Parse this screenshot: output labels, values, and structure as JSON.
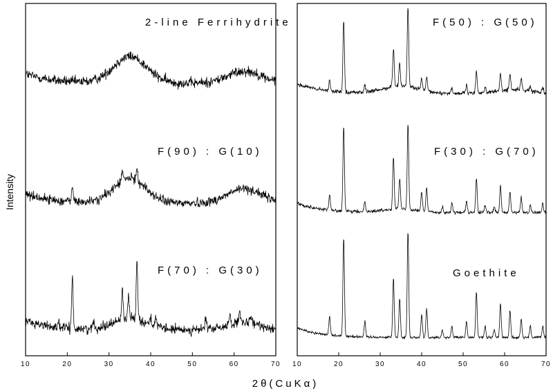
{
  "chart_data": [
    {
      "type": "line",
      "panel": "left",
      "xlabel": "2θ(CuKα)",
      "ylabel": "Intensity",
      "xlim": [
        10,
        70
      ],
      "xticks": [
        "10",
        "20",
        "30",
        "40",
        "50",
        "60",
        "70"
      ],
      "y_ticks_shown": false,
      "series": [
        {
          "name": "2-line Ferrihydrite",
          "baseline": 0.72,
          "broad_peaks": [
            [
              35.0,
              0.7,
              4.0
            ],
            [
              62.5,
              0.32,
              4.0
            ]
          ],
          "sharp_peaks": [],
          "noise": 0.13
        },
        {
          "name": "F(90) : G(10)",
          "baseline": 0.6,
          "broad_peaks": [
            [
              35.0,
              0.65,
              3.8
            ],
            [
              62.5,
              0.38,
              4.0
            ]
          ],
          "sharp_peaks": [
            [
              21.2,
              0.45
            ],
            [
              33.2,
              0.25
            ],
            [
              36.7,
              0.35
            ]
          ],
          "noise": 0.12
        },
        {
          "name": "F(70) : G(30)",
          "baseline": 0.5,
          "broad_peaks": [
            [
              35.0,
              0.3,
              4.0
            ],
            [
              62.5,
              0.18,
              4.0
            ]
          ],
          "sharp_peaks": [
            [
              17.8,
              0.15
            ],
            [
              21.2,
              1.35
            ],
            [
              26.3,
              0.15
            ],
            [
              33.2,
              0.8
            ],
            [
              34.7,
              0.6
            ],
            [
              36.7,
              1.6
            ],
            [
              40.0,
              0.2
            ],
            [
              41.2,
              0.25
            ],
            [
              53.2,
              0.35
            ],
            [
              59.0,
              0.35
            ],
            [
              61.3,
              0.3
            ],
            [
              64.0,
              0.2
            ]
          ],
          "noise": 0.12
        }
      ]
    },
    {
      "type": "line",
      "panel": "right",
      "xlabel": "2θ(CuKα)",
      "ylabel": "Intensity",
      "xlim": [
        10,
        70
      ],
      "xticks": [
        "10",
        "20",
        "30",
        "40",
        "50",
        "60",
        "70"
      ],
      "y_ticks_shown": false,
      "series": [
        {
          "name": "F(50) : G(50)",
          "baseline": 0.45,
          "broad_peaks": [
            [
              35.0,
              0.2,
              4.0
            ],
            [
              62.5,
              0.1,
              4.0
            ]
          ],
          "sharp_peaks": [
            [
              17.8,
              0.25
            ],
            [
              21.2,
              1.9
            ],
            [
              26.3,
              0.2
            ],
            [
              33.2,
              1.0
            ],
            [
              34.7,
              0.6
            ],
            [
              36.7,
              2.1
            ],
            [
              40.0,
              0.3
            ],
            [
              41.2,
              0.35
            ],
            [
              47.3,
              0.15
            ],
            [
              50.8,
              0.2
            ],
            [
              53.2,
              0.6
            ],
            [
              55.3,
              0.15
            ],
            [
              59.0,
              0.45
            ],
            [
              61.3,
              0.4
            ],
            [
              64.0,
              0.3
            ],
            [
              66.2,
              0.1
            ],
            [
              69.2,
              0.15
            ]
          ],
          "noise": 0.05
        },
        {
          "name": "F(30) : G(70)",
          "baseline": 0.35,
          "broad_peaks": [
            [
              35.0,
              0.1,
              4.0
            ]
          ],
          "sharp_peaks": [
            [
              17.8,
              0.4
            ],
            [
              21.2,
              2.2
            ],
            [
              26.3,
              0.3
            ],
            [
              33.2,
              1.4
            ],
            [
              34.7,
              0.8
            ],
            [
              36.7,
              2.25
            ],
            [
              40.0,
              0.5
            ],
            [
              41.2,
              0.6
            ],
            [
              45.0,
              0.15
            ],
            [
              47.3,
              0.25
            ],
            [
              50.8,
              0.3
            ],
            [
              53.2,
              0.9
            ],
            [
              55.3,
              0.2
            ],
            [
              57.5,
              0.15
            ],
            [
              59.0,
              0.7
            ],
            [
              61.3,
              0.55
            ],
            [
              64.0,
              0.4
            ],
            [
              66.2,
              0.2
            ],
            [
              69.2,
              0.25
            ]
          ],
          "noise": 0.04
        },
        {
          "name": "Goethite",
          "baseline": 0.3,
          "broad_peaks": [],
          "sharp_peaks": [
            [
              17.8,
              0.5
            ],
            [
              21.2,
              2.6
            ],
            [
              26.3,
              0.4
            ],
            [
              33.2,
              1.55
            ],
            [
              34.7,
              1.0
            ],
            [
              36.7,
              2.8
            ],
            [
              40.0,
              0.6
            ],
            [
              41.2,
              0.75
            ],
            [
              45.0,
              0.2
            ],
            [
              47.3,
              0.3
            ],
            [
              50.8,
              0.4
            ],
            [
              53.2,
              1.2
            ],
            [
              55.3,
              0.3
            ],
            [
              57.5,
              0.2
            ],
            [
              59.0,
              0.9
            ],
            [
              61.3,
              0.7
            ],
            [
              64.0,
              0.5
            ],
            [
              66.2,
              0.3
            ],
            [
              69.2,
              0.3
            ]
          ],
          "noise": 0.035
        }
      ]
    }
  ],
  "colors": {
    "trace": "#000000",
    "frame": "#000000",
    "background": "#ffffff"
  }
}
